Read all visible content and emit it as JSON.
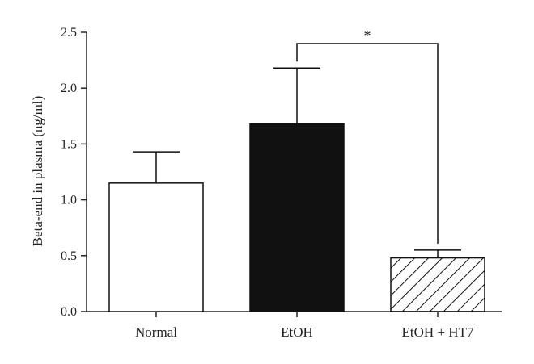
{
  "chart_data": {
    "type": "bar",
    "title": "",
    "xlabel": "",
    "ylabel": "Beta-end in plasma (ng/ml)",
    "categories": [
      "Normal",
      "EtOH",
      "EtOH + HT7"
    ],
    "values": [
      1.15,
      1.68,
      0.48
    ],
    "errors": [
      0.28,
      0.5,
      0.07
    ],
    "bar_styles": [
      "white",
      "black",
      "hatched"
    ],
    "ylim": [
      0,
      2.5
    ],
    "yticks": [
      "0.0",
      "0.5",
      "1.0",
      "1.5",
      "2.0",
      "2.5"
    ],
    "grid": false,
    "significance": {
      "from": "EtOH",
      "to": "EtOH + HT7",
      "label": "*"
    }
  }
}
